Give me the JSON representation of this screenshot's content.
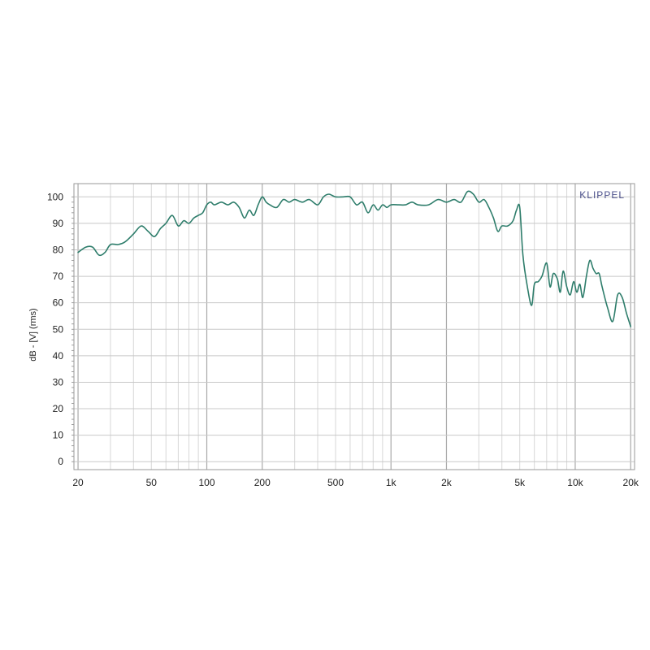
{
  "chart_data": {
    "type": "line",
    "title": "",
    "brand": "KLIPPEL",
    "ylabel": "dB - [V] (rms)",
    "xlabel": "",
    "x_scale": "log",
    "xlim": [
      19,
      21000
    ],
    "ylim": [
      -3,
      105
    ],
    "grid": true,
    "legend": "none",
    "x_tick_labels": [
      {
        "value": 20,
        "label": "20"
      },
      {
        "value": 50,
        "label": "50"
      },
      {
        "value": 100,
        "label": "100"
      },
      {
        "value": 200,
        "label": "200"
      },
      {
        "value": 500,
        "label": "500"
      },
      {
        "value": 1000,
        "label": "1k"
      },
      {
        "value": 2000,
        "label": "2k"
      },
      {
        "value": 5000,
        "label": "5k"
      },
      {
        "value": 10000,
        "label": "10k"
      },
      {
        "value": 20000,
        "label": "20k"
      }
    ],
    "y_ticks": [
      0,
      10,
      20,
      30,
      40,
      50,
      60,
      70,
      80,
      90,
      100
    ],
    "colors": {
      "line": "#2e7d6b",
      "grid": "#c8c8c8",
      "brand": "#4a4f8a",
      "axis": "#555555"
    },
    "series": [
      {
        "x": [
          20,
          22,
          24,
          26,
          28,
          30,
          33,
          36,
          40,
          44,
          48,
          52,
          56,
          60,
          65,
          70,
          75,
          80,
          85,
          90,
          95,
          100,
          105,
          110,
          120,
          130,
          140,
          150,
          160,
          170,
          180,
          190,
          200,
          210,
          220,
          240,
          260,
          280,
          300,
          330,
          360,
          400,
          430,
          460,
          500,
          550,
          600,
          650,
          700,
          750,
          800,
          850,
          900,
          950,
          1000,
          1100,
          1200,
          1300,
          1400,
          1600,
          1800,
          2000,
          2200,
          2400,
          2600,
          2800,
          3000,
          3200,
          3400,
          3600,
          3800,
          4000,
          4300,
          4600,
          4800,
          5000,
          5200,
          5500,
          5800,
          6000,
          6300,
          6600,
          7000,
          7300,
          7600,
          8000,
          8300,
          8600,
          9000,
          9400,
          9800,
          10200,
          10600,
          11000,
          11500,
          12000,
          12500,
          13000,
          13500,
          14000,
          15000,
          16000,
          17000,
          18000,
          19000,
          20000
        ],
        "y": [
          79,
          81,
          81,
          78,
          79,
          82,
          82,
          83,
          86,
          89,
          87,
          85,
          88,
          90,
          93,
          89,
          91,
          90,
          92,
          93,
          94,
          97,
          98,
          97,
          98,
          97,
          98,
          96,
          92,
          95,
          93,
          97,
          100,
          98,
          97,
          96,
          99,
          98,
          99,
          98,
          99,
          97,
          100,
          101,
          100,
          100,
          100,
          97,
          98,
          94,
          97,
          95,
          97,
          96,
          97,
          97,
          97,
          98,
          97,
          97,
          99,
          98,
          99,
          98,
          102,
          101,
          98,
          99,
          96,
          92,
          87,
          89,
          89,
          91,
          95,
          96,
          78,
          66,
          59,
          67,
          68,
          70,
          75,
          66,
          71,
          69,
          64,
          72,
          66,
          63,
          68,
          64,
          67,
          62,
          70,
          76,
          73,
          71,
          71,
          66,
          58,
          53,
          63,
          62,
          56,
          51
        ]
      }
    ]
  }
}
